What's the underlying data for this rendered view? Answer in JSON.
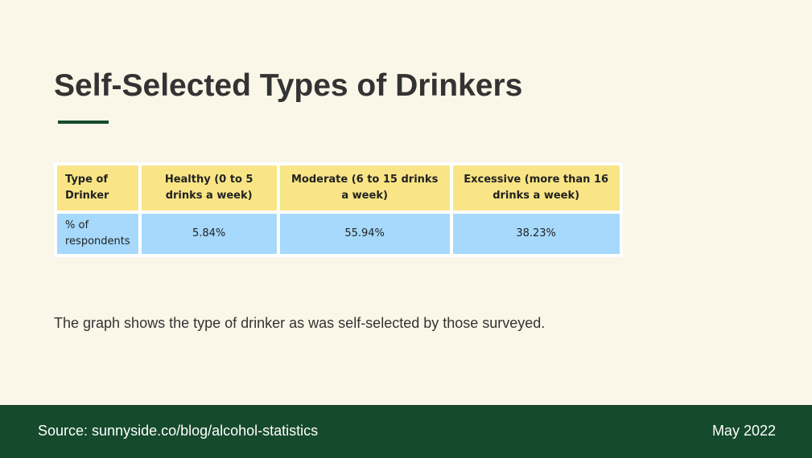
{
  "slide": {
    "title": "Self-Selected Types of Drinkers",
    "description": "The graph shows the type of drinker as was self-selected by those surveyed.",
    "colors": {
      "background": "#faf6e8",
      "accent": "#154a2c",
      "header_cell": "#f9e585",
      "data_cell": "#a6d9fc"
    }
  },
  "table": {
    "headers": [
      "Type of Drinker",
      "Healthy (0 to 5 drinks a week)",
      "Moderate (6 to 15 drinks a week)",
      "Excessive (more than 16 drinks a week)"
    ],
    "rows": [
      [
        "% of respondents",
        "5.84%",
        "55.94%",
        "38.23%"
      ]
    ]
  },
  "footer": {
    "source": "Source: sunnyside.co/blog/alcohol-statistics",
    "date": "May 2022"
  }
}
